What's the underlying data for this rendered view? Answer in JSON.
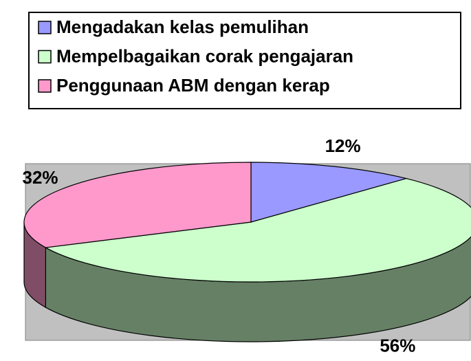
{
  "chart_data": {
    "type": "pie",
    "categories": [
      "Mengadakan kelas pemulihan",
      "Mempelbagaikan corak pengajaran",
      "Penggunaan ABM dengan kerap"
    ],
    "values": [
      12,
      56,
      32
    ],
    "value_labels": [
      "12%",
      "56%",
      "32%"
    ],
    "colors": [
      "#9999ff",
      "#ccffcc",
      "#ff99cc"
    ],
    "legend": "top"
  }
}
